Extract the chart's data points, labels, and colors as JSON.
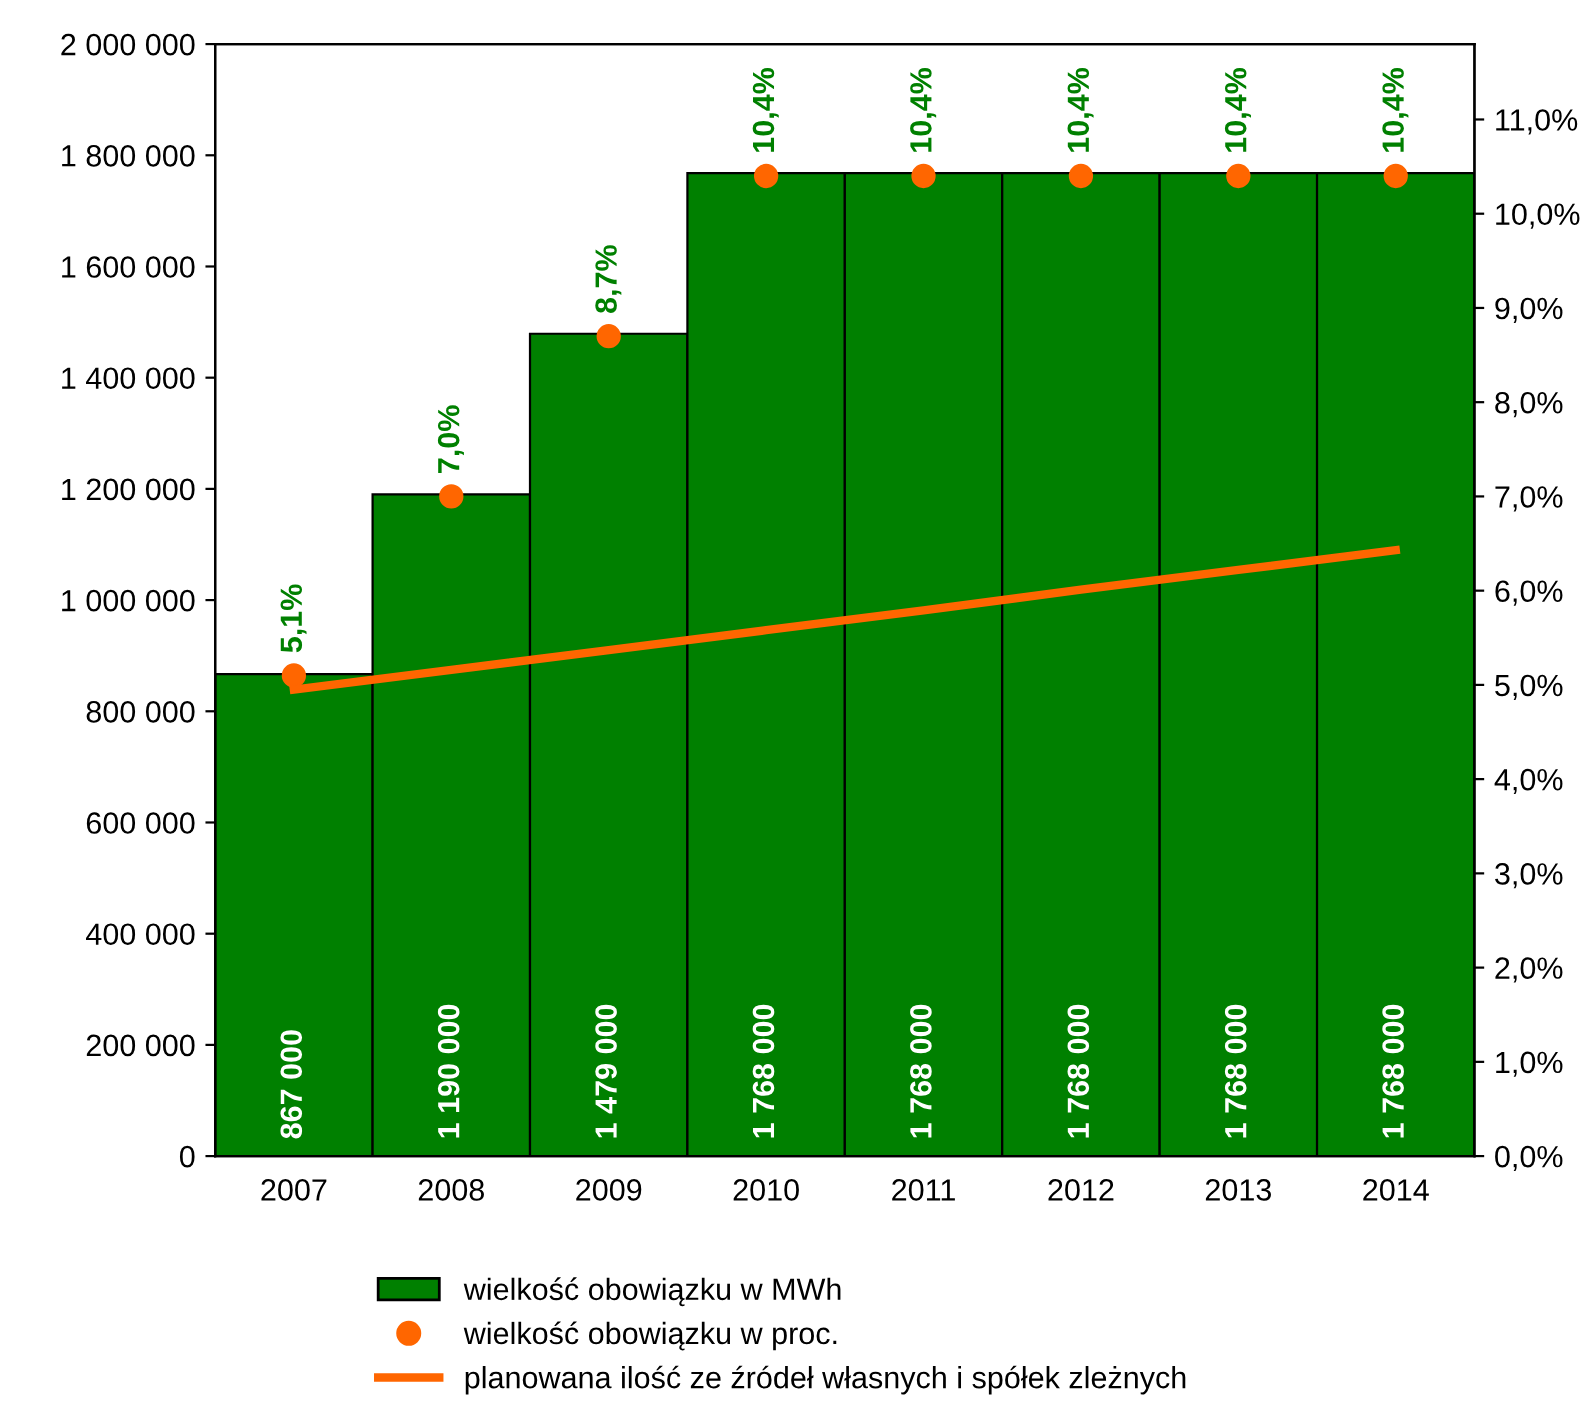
{
  "chart_data": {
    "type": "bar",
    "categories": [
      "2007",
      "2008",
      "2009",
      "2010",
      "2011",
      "2012",
      "2013",
      "2014"
    ],
    "ylim": [
      0,
      2000000
    ],
    "yticks": [
      {
        "value": 0,
        "label": "0"
      },
      {
        "value": 200000,
        "label": "200 000"
      },
      {
        "value": 400000,
        "label": "400 000"
      },
      {
        "value": 600000,
        "label": "600 000"
      },
      {
        "value": 800000,
        "label": "800 000"
      },
      {
        "value": 1000000,
        "label": "1 000 000"
      },
      {
        "value": 1200000,
        "label": "1 200 000"
      },
      {
        "value": 1400000,
        "label": "1 400 000"
      },
      {
        "value": 1600000,
        "label": "1 600 000"
      },
      {
        "value": 1800000,
        "label": "1 800 000"
      },
      {
        "value": 2000000,
        "label": "2 000 000"
      }
    ],
    "y2lim": [
      0,
      11.8
    ],
    "y2ticks": [
      {
        "value": 0,
        "label": "0,0%"
      },
      {
        "value": 1,
        "label": "1,0%"
      },
      {
        "value": 2,
        "label": "2,0%"
      },
      {
        "value": 3,
        "label": "3,0%"
      },
      {
        "value": 4,
        "label": "4,0%"
      },
      {
        "value": 5,
        "label": "5,0%"
      },
      {
        "value": 6,
        "label": "6,0%"
      },
      {
        "value": 7,
        "label": "7,0%"
      },
      {
        "value": 8,
        "label": "8,0%"
      },
      {
        "value": 9,
        "label": "9,0%"
      },
      {
        "value": 10,
        "label": "10,0%"
      },
      {
        "value": 11,
        "label": "11,0%"
      }
    ],
    "grid": false,
    "legend": "bottom",
    "series": [
      {
        "name": "wielkość obowiązku w MWh",
        "color": "#008000",
        "values": [
          867000,
          1190000,
          1479000,
          1768000,
          1768000,
          1768000,
          1768000,
          1768000
        ],
        "value_labels": [
          "867 000",
          "1 190 000",
          "1 479 000",
          "1 768 000",
          "1 768 000",
          "1 768 000",
          "1 768 000",
          "1 768 000"
        ]
      },
      {
        "name": "wielkość obowiązku w proc.",
        "type": "scatter",
        "axis": "y2",
        "marker": "circle",
        "color": "#ff6600",
        "values": [
          5.1,
          7.0,
          8.7,
          10.4,
          10.4,
          10.4,
          10.4,
          10.4
        ],
        "value_labels": [
          "5,1%",
          "7,0%",
          "8,7%",
          "10,4%",
          "10,4%",
          "10,4%",
          "10,4%",
          "10,4%"
        ]
      },
      {
        "name": "planowana ilość ze źródeł własnych i spółek zleżnych",
        "type": "line",
        "axis": "y2",
        "line_style": "solid",
        "color": "#ff6600",
        "values": [
          4.95,
          5.16,
          5.37,
          5.58,
          5.79,
          6.01,
          6.22,
          6.43
        ]
      }
    ]
  }
}
